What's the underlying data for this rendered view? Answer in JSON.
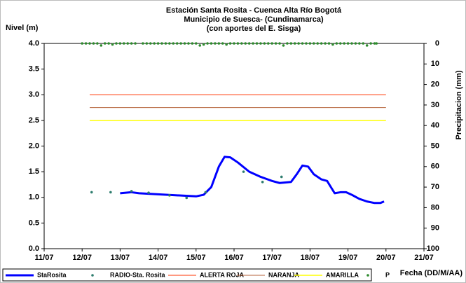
{
  "chart_data": {
    "type": "line",
    "title": [
      "Estación Santa Rosita - Cuenca Alta Río Bogotá",
      "Municipio de Suesca- (Cundinamarca)",
      "(con aportes del  E. Sisga)"
    ],
    "y_label": "Nivel (m)",
    "y2_label": "Precipitacion (mm)",
    "x_label": "Fecha (DD/M/AA)",
    "xlim": [
      11,
      21
    ],
    "xticks": [
      {
        "value": 11,
        "label": "11/07"
      },
      {
        "value": 12,
        "label": "12/07"
      },
      {
        "value": 13,
        "label": "13/07"
      },
      {
        "value": 14,
        "label": "14/07"
      },
      {
        "value": 15,
        "label": "15/07"
      },
      {
        "value": 16,
        "label": "16/07"
      },
      {
        "value": 17,
        "label": "17/07"
      },
      {
        "value": 18,
        "label": "18/07"
      },
      {
        "value": 19,
        "label": "19/07"
      },
      {
        "value": 20,
        "label": "20/07"
      },
      {
        "value": 21,
        "label": "21/07"
      }
    ],
    "ylim": [
      0,
      4
    ],
    "yticks": [
      {
        "value": 0,
        "label": "0.0"
      },
      {
        "value": 0.5,
        "label": "0.5"
      },
      {
        "value": 1,
        "label": "1.0"
      },
      {
        "value": 1.5,
        "label": "1.5"
      },
      {
        "value": 2,
        "label": "2.0"
      },
      {
        "value": 2.5,
        "label": "2.5"
      },
      {
        "value": 3,
        "label": "3.0"
      },
      {
        "value": 3.5,
        "label": "3.5"
      },
      {
        "value": 4,
        "label": "4.0"
      }
    ],
    "y2lim": [
      0,
      100
    ],
    "y2_inverted": true,
    "y2ticks": [
      0,
      10,
      20,
      30,
      40,
      50,
      60,
      70,
      80,
      90,
      100
    ],
    "series": [
      {
        "name": "StaRosita",
        "color": "#0000ff",
        "style": "line",
        "width": 3,
        "x": [
          13.0,
          13.3,
          13.5,
          14.0,
          14.5,
          15.0,
          15.2,
          15.4,
          15.6,
          15.75,
          15.9,
          16.1,
          16.4,
          16.7,
          17.0,
          17.2,
          17.5,
          17.65,
          17.8,
          17.95,
          18.1,
          18.3,
          18.45,
          18.55,
          18.65,
          18.8,
          18.95,
          19.1,
          19.3,
          19.5,
          19.7,
          19.85,
          19.95
        ],
        "values": [
          1.08,
          1.1,
          1.08,
          1.06,
          1.04,
          1.02,
          1.05,
          1.2,
          1.6,
          1.79,
          1.78,
          1.68,
          1.5,
          1.4,
          1.32,
          1.28,
          1.3,
          1.45,
          1.62,
          1.6,
          1.45,
          1.35,
          1.32,
          1.2,
          1.08,
          1.1,
          1.1,
          1.05,
          0.97,
          0.92,
          0.89,
          0.89,
          0.92
        ]
      },
      {
        "name": "RADIO-Sta. Rosita",
        "color": "#2e7d6e",
        "style": "dots",
        "x": [
          12.25,
          12.75,
          13.3,
          13.75,
          14.3,
          14.75,
          15.25,
          16.25,
          16.75,
          17.25
        ],
        "values": [
          1.1,
          1.1,
          1.12,
          1.09,
          1.04,
          0.99,
          1.1,
          1.5,
          1.3,
          1.4
        ]
      },
      {
        "name": "ALERTA ROJA",
        "color": "#ff3300",
        "style": "line",
        "width": 1,
        "x": [
          12.2,
          20.0
        ],
        "values": [
          3.0,
          3.0
        ]
      },
      {
        "name": "NARANJA",
        "color": "#b5623a",
        "style": "line",
        "width": 1,
        "x": [
          12.2,
          20.0
        ],
        "values": [
          2.75,
          2.75
        ]
      },
      {
        "name": "AMARILLA",
        "color": "#ffff00",
        "style": "line",
        "width": 1.5,
        "x": [
          12.2,
          20.0
        ],
        "values": [
          2.5,
          2.5
        ]
      },
      {
        "name": "P",
        "color": "#2e8b2e",
        "style": "dots",
        "axis": "y2",
        "x": [
          12.0,
          12.1,
          12.2,
          12.3,
          12.4,
          12.5,
          12.6,
          12.7,
          12.8,
          12.9,
          13.0,
          13.1,
          13.2,
          13.3,
          13.4,
          13.6,
          13.7,
          13.8,
          13.9,
          14.0,
          14.1,
          14.2,
          14.3,
          14.4,
          14.5,
          14.6,
          14.7,
          14.8,
          14.9,
          15.0,
          15.1,
          15.2,
          15.3,
          15.4,
          15.5,
          15.6,
          15.7,
          15.8,
          15.9,
          16.0,
          16.1,
          16.2,
          16.3,
          16.4,
          16.5,
          16.6,
          16.7,
          16.8,
          16.9,
          17.0,
          17.1,
          17.2,
          17.3,
          17.4,
          17.5,
          17.6,
          17.7,
          17.8,
          17.9,
          18.0,
          18.1,
          18.2,
          18.3,
          18.4,
          18.5,
          18.6,
          18.7,
          18.8,
          18.9,
          19.0,
          19.1,
          19.2,
          19.3,
          19.4,
          19.5,
          19.6,
          19.7,
          19.75
        ],
        "values": [
          0,
          0,
          0,
          0,
          0,
          1,
          0,
          0,
          0.5,
          0,
          0,
          0,
          0,
          0,
          0,
          0,
          0,
          0,
          0,
          0,
          0,
          0,
          0,
          0,
          0,
          0,
          0,
          0,
          0,
          0,
          1,
          0.5,
          0,
          0,
          0,
          0,
          0,
          0.5,
          0,
          0,
          0,
          0,
          0,
          0,
          0,
          0,
          0,
          0,
          0,
          0,
          0,
          0,
          1,
          0,
          0,
          0,
          0,
          0,
          0,
          0,
          0,
          0,
          0,
          0,
          0,
          0.5,
          0,
          0,
          0,
          0,
          0,
          0,
          0,
          0,
          1,
          0,
          0,
          0
        ]
      }
    ]
  }
}
